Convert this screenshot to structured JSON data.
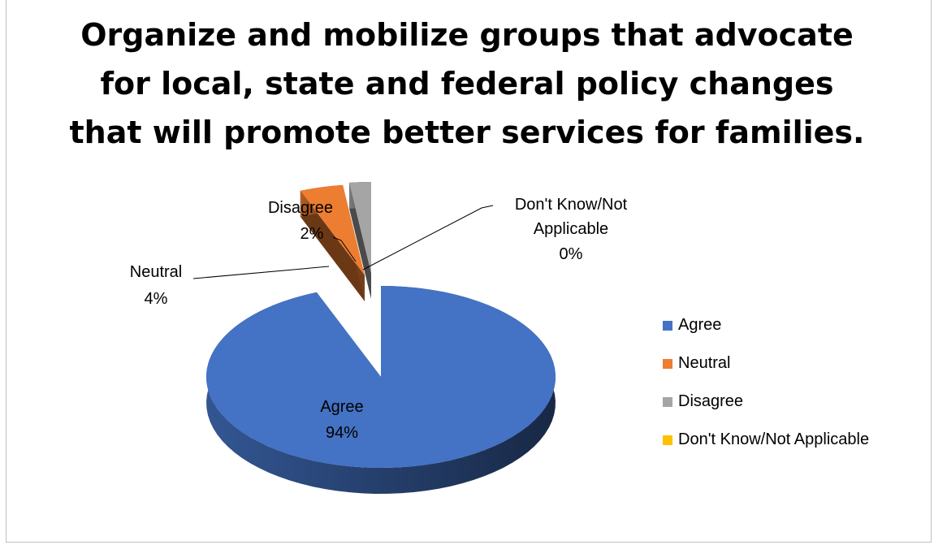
{
  "chart_data": {
    "type": "pie",
    "title_lines": [
      "Organize and mobilize groups that advocate",
      "for local, state and federal policy changes",
      "that will promote better services for families."
    ],
    "categories": [
      "Agree",
      "Neutral",
      "Disagree",
      "Don't Know/Not Applicable"
    ],
    "values": [
      94,
      4,
      2,
      0
    ],
    "value_labels": [
      "94%",
      "4%",
      "2%",
      "0%"
    ],
    "colors": [
      "#4472C4",
      "#ED7D31",
      "#A5A5A5",
      "#FFC000"
    ],
    "label_lines": [
      [
        "Agree",
        "94%"
      ],
      [
        "Neutral",
        "4%"
      ],
      [
        "Disagree",
        "2%"
      ],
      [
        "Don't Know/Not",
        "Applicable",
        "0%"
      ]
    ],
    "style": "3d-exploded",
    "legend_position": "right"
  }
}
